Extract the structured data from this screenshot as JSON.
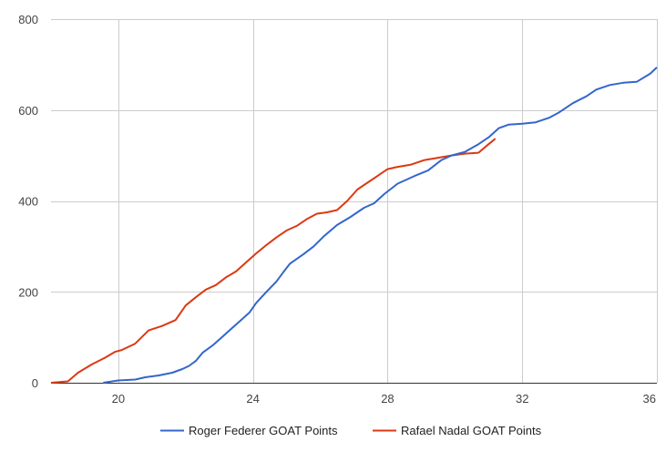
{
  "chart_data": {
    "type": "line",
    "title": "",
    "xlabel": "",
    "ylabel": "",
    "xlim": [
      18,
      36
    ],
    "ylim": [
      0,
      800
    ],
    "x_ticks": [
      20,
      24,
      28,
      32,
      36
    ],
    "y_ticks": [
      0,
      200,
      400,
      600,
      800
    ],
    "grid": true,
    "legend_position": "bottom",
    "series": [
      {
        "name": "Roger Federer GOAT Points",
        "color": "#3366cc",
        "x": [
          19.55,
          20.0,
          20.5,
          20.8,
          21.2,
          21.6,
          21.9,
          22.1,
          22.3,
          22.5,
          22.8,
          23.0,
          23.3,
          23.6,
          23.9,
          24.1,
          24.4,
          24.7,
          24.9,
          25.1,
          25.5,
          25.8,
          26.1,
          26.5,
          26.9,
          27.3,
          27.6,
          27.9,
          28.3,
          28.8,
          29.2,
          29.6,
          29.9,
          30.3,
          30.7,
          31.0,
          31.3,
          31.6,
          32.0,
          32.4,
          32.8,
          33.1,
          33.5,
          33.9,
          34.2,
          34.6,
          35.0,
          35.4,
          35.8,
          36.0
        ],
        "y": [
          0,
          5,
          7,
          12,
          16,
          22,
          30,
          37,
          48,
          66,
          82,
          95,
          115,
          135,
          155,
          176,
          200,
          223,
          243,
          262,
          283,
          300,
          322,
          347,
          365,
          385,
          395,
          415,
          438,
          455,
          467,
          490,
          500,
          508,
          525,
          540,
          560,
          568,
          570,
          573,
          583,
          595,
          615,
          630,
          645,
          655,
          660,
          662,
          680,
          694
        ]
      },
      {
        "name": "Rafael Nadal GOAT Points",
        "color": "#dc3912",
        "x": [
          18.0,
          18.5,
          18.8,
          19.2,
          19.6,
          19.9,
          20.1,
          20.5,
          20.9,
          21.3,
          21.7,
          22.0,
          22.3,
          22.6,
          22.9,
          23.2,
          23.5,
          23.8,
          24.1,
          24.4,
          24.7,
          25.0,
          25.3,
          25.6,
          25.9,
          26.2,
          26.5,
          26.8,
          27.1,
          27.4,
          27.7,
          28.0,
          28.3,
          28.7,
          29.1,
          29.5,
          29.9,
          30.3,
          30.7,
          31.0,
          31.2
        ],
        "y": [
          0,
          3,
          22,
          40,
          55,
          68,
          72,
          86,
          115,
          125,
          138,
          170,
          188,
          205,
          215,
          232,
          245,
          265,
          285,
          303,
          320,
          335,
          345,
          360,
          372,
          375,
          380,
          400,
          425,
          440,
          455,
          470,
          475,
          480,
          490,
          495,
          500,
          504,
          506,
          525,
          537
        ]
      }
    ]
  }
}
